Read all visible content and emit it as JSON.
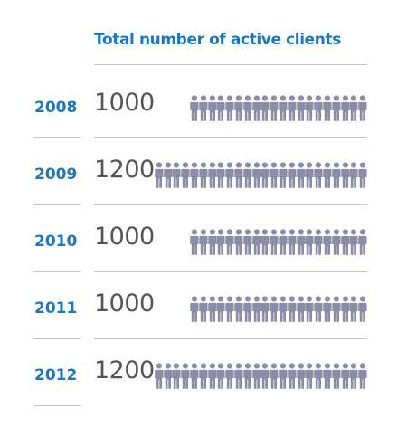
{
  "title": "Total number of active clients",
  "colors": {
    "title": "#1878c4",
    "year": "#1878c4",
    "value": "#555559",
    "person": "#8c8ca8",
    "rule": "#c4c4c4"
  },
  "icon": "person-icon",
  "chart_data": {
    "type": "bar",
    "title": "Total number of active clients",
    "categories": [
      "2008",
      "2009",
      "2010",
      "2011",
      "2012"
    ],
    "values": [
      1000,
      1200,
      1000,
      1000,
      1200
    ],
    "value_labels": [
      "1000",
      "1200",
      "1000",
      "1000",
      "1200"
    ],
    "icons_per_row": [
      20,
      24,
      20,
      20,
      24
    ]
  }
}
